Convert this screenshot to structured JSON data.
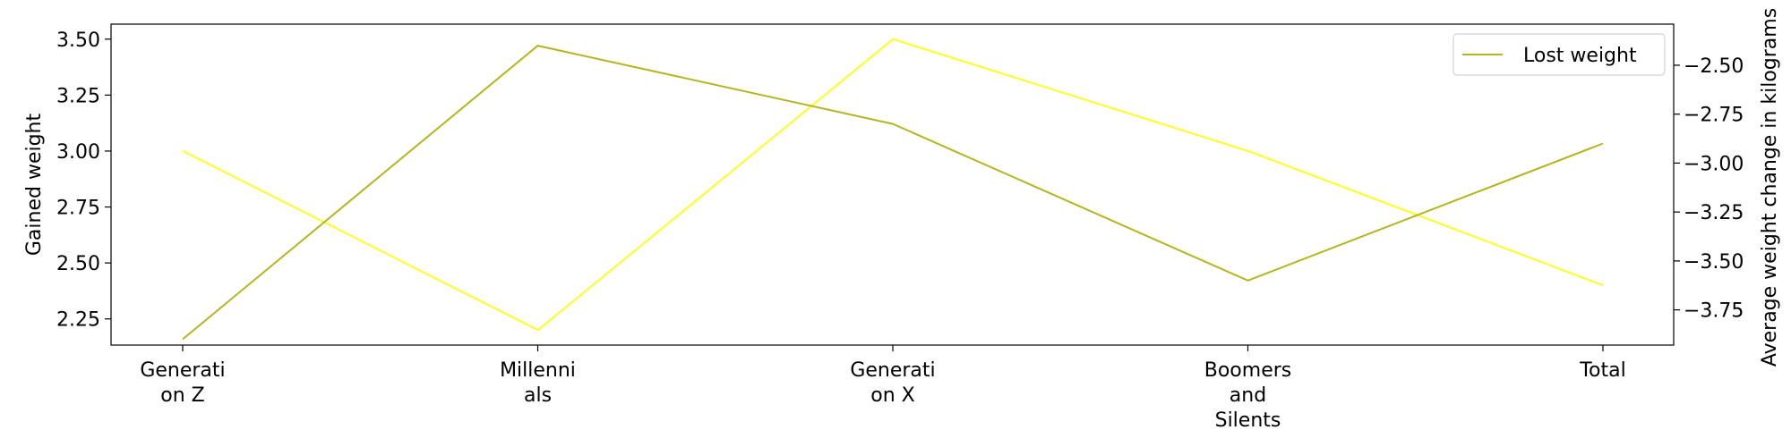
{
  "chart_data": {
    "type": "line",
    "title": "",
    "categories": [
      "Generation Z",
      "Millennials",
      "Generation X",
      "Boomers and Silents",
      "Total"
    ],
    "category_tick_lines": [
      [
        "Generati",
        "on Z"
      ],
      [
        "Millenni",
        "als"
      ],
      [
        "Generati",
        "on X"
      ],
      [
        "Boomers",
        "and",
        "Silents"
      ],
      [
        "Total"
      ]
    ],
    "xlabel": "",
    "ylabel_left": "Gained weight",
    "ylabel_right": "Average weight change in kilograms",
    "ylim_left": [
      2.133,
      3.567
    ],
    "ylim_right": [
      -3.93,
      -2.29
    ],
    "yticks_left": [
      2.25,
      2.5,
      2.75,
      3.0,
      3.25,
      3.5
    ],
    "yticks_left_labels": [
      "2.25",
      "2.50",
      "2.75",
      "3.00",
      "3.25",
      "3.50"
    ],
    "yticks_right": [
      -2.5,
      -2.75,
      -3.0,
      -3.25,
      -3.5,
      -3.75
    ],
    "yticks_right_labels": [
      "−2.50",
      "−2.75",
      "−3.00",
      "−3.25",
      "−3.50",
      "−3.75"
    ],
    "series": [
      {
        "name": "Gained weight",
        "axis": "left",
        "color": "#ffff22",
        "values": [
          3.0,
          2.2,
          3.5,
          3.0,
          2.4
        ]
      },
      {
        "name": "Lost weight",
        "axis": "right",
        "color": "#b5b520",
        "values": [
          -3.9,
          -2.4,
          -2.8,
          -3.6,
          -2.9
        ]
      }
    ],
    "legend": {
      "entries": [
        "Lost weight"
      ],
      "placement": "top-right"
    },
    "grid": false
  }
}
